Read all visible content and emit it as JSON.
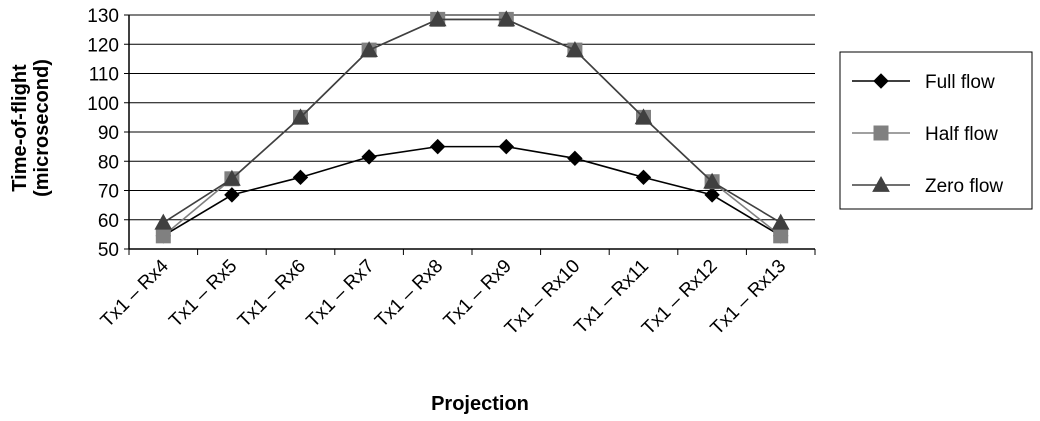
{
  "chart_data": {
    "type": "line",
    "title": "",
    "xlabel": "Projection",
    "ylabel_lines": [
      "Time-of-flight",
      "(microsecond)"
    ],
    "ylim": [
      50,
      130
    ],
    "yticks": [
      50,
      60,
      70,
      80,
      90,
      100,
      110,
      120,
      130
    ],
    "grid": true,
    "legend_position": "right",
    "categories": [
      "Tx1 – Rx4",
      "Tx1 – Rx5",
      "Tx1 – Rx6",
      "Tx1 – Rx7",
      "Tx1 – Rx8",
      "Tx1 – Rx9",
      "Tx1 – Rx10",
      "Tx1 – Rx11",
      "Tx1 – Rx12",
      "Tx1 – Rx13"
    ],
    "series": [
      {
        "name": "Full flow",
        "marker": "diamond",
        "color": "#000000",
        "values": [
          54.5,
          68.5,
          74.5,
          81.5,
          85,
          85,
          81,
          74.5,
          68.5,
          54.5
        ]
      },
      {
        "name": "Half flow",
        "marker": "square",
        "color": "#808080",
        "values": [
          54.5,
          74,
          95,
          118,
          128.5,
          128.5,
          118,
          95,
          73,
          54.5
        ]
      },
      {
        "name": "Zero flow",
        "marker": "triangle",
        "color": "#404040",
        "values": [
          59,
          74,
          95,
          118,
          128.5,
          128.5,
          118,
          95,
          73,
          59
        ]
      }
    ]
  }
}
